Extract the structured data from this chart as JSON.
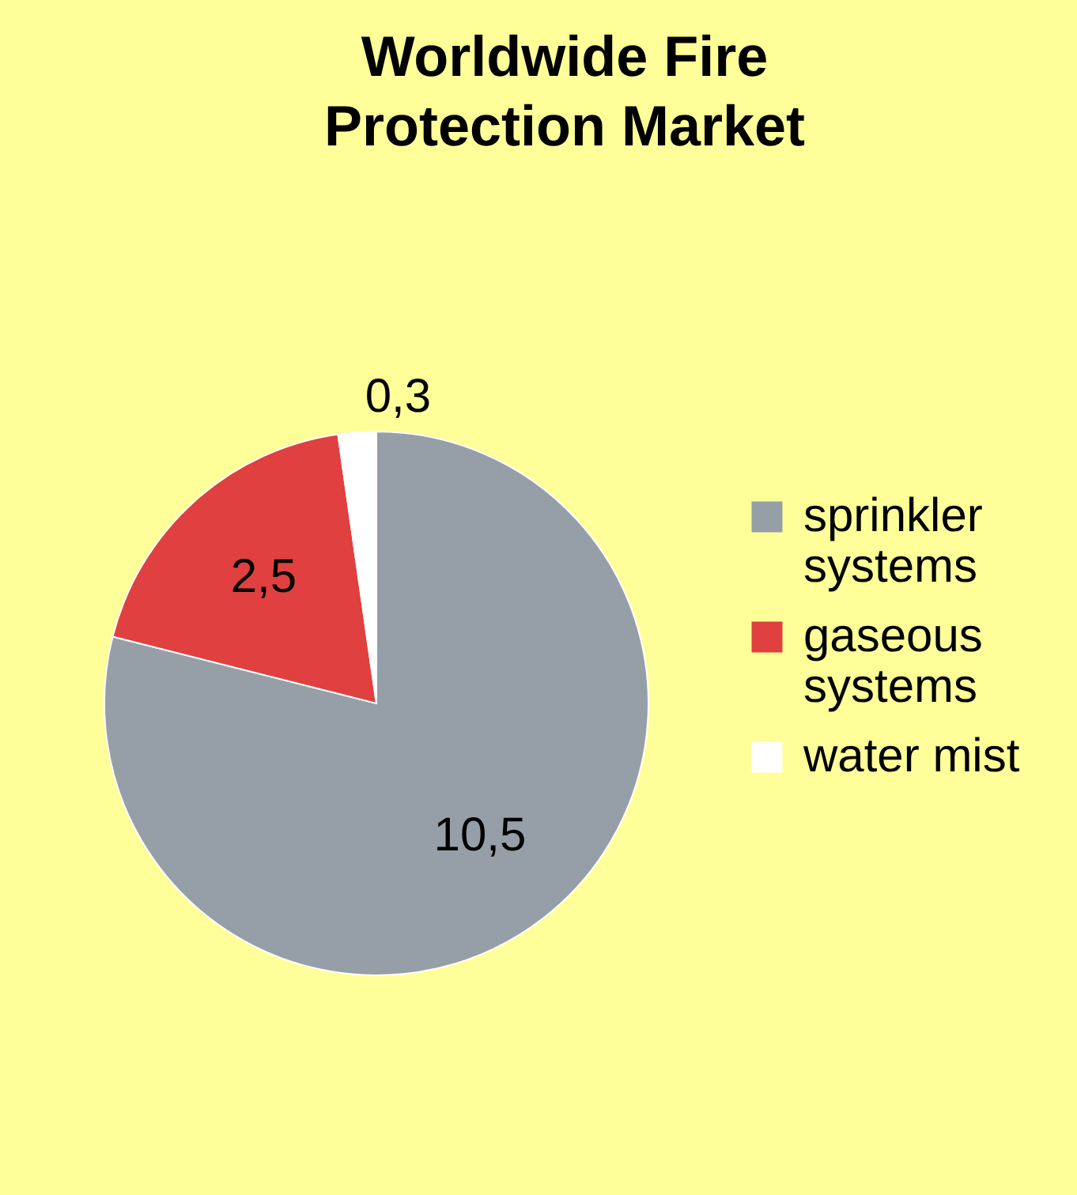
{
  "chart_data": {
    "type": "pie",
    "title": "Worldwide Fire Protection Market",
    "categories": [
      "sprinkler systems",
      "gaseous systems",
      "water mist"
    ],
    "values": [
      10.5,
      2.5,
      0.3
    ],
    "colors": [
      "#969fa8",
      "#e04040",
      "#ffffff"
    ],
    "value_labels": [
      "10,5",
      "2,5",
      "0,3"
    ],
    "legend": "right"
  }
}
